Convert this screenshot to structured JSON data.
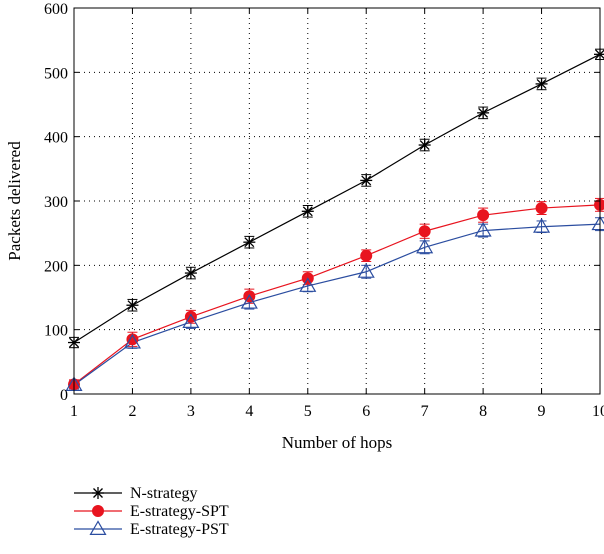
{
  "chart_data": {
    "type": "line",
    "title": "",
    "xlabel": "Number of hops",
    "ylabel": "Packets delivered",
    "x": [
      1,
      2,
      3,
      4,
      5,
      6,
      7,
      8,
      9,
      10
    ],
    "xlim": [
      1,
      10
    ],
    "ylim": [
      0,
      600
    ],
    "xticks": [
      "1",
      "2",
      "3",
      "4",
      "5",
      "6",
      "7",
      "8",
      "9",
      "10"
    ],
    "yticks": [
      "0",
      "100",
      "200",
      "300",
      "400",
      "500",
      "600"
    ],
    "grid": true,
    "error_bars": true,
    "legend_position": "bottom-left, below the plot",
    "series": [
      {
        "name": "N-strategy",
        "color": "#000000",
        "marker": "asterisk",
        "values": [
          80,
          138,
          188,
          236,
          284,
          332,
          387,
          437,
          482,
          528
        ],
        "errors": [
          8,
          9,
          9,
          9,
          9,
          9,
          9,
          9,
          9,
          8
        ]
      },
      {
        "name": "E-strategy-SPT",
        "color": "#e8141f",
        "marker": "filled-circle",
        "values": [
          15,
          85,
          120,
          152,
          180,
          215,
          253,
          278,
          289,
          294
        ],
        "errors": [
          7,
          11,
          10,
          11,
          10,
          9,
          11,
          11,
          10,
          10
        ]
      },
      {
        "name": "E-strategy-PST",
        "color": "#2b4da0",
        "marker": "open-triangle",
        "values": [
          14,
          80,
          112,
          142,
          168,
          190,
          228,
          254,
          260,
          264
        ],
        "errors": [
          6,
          9,
          10,
          10,
          9,
          10,
          10,
          10,
          9,
          10
        ]
      }
    ]
  }
}
